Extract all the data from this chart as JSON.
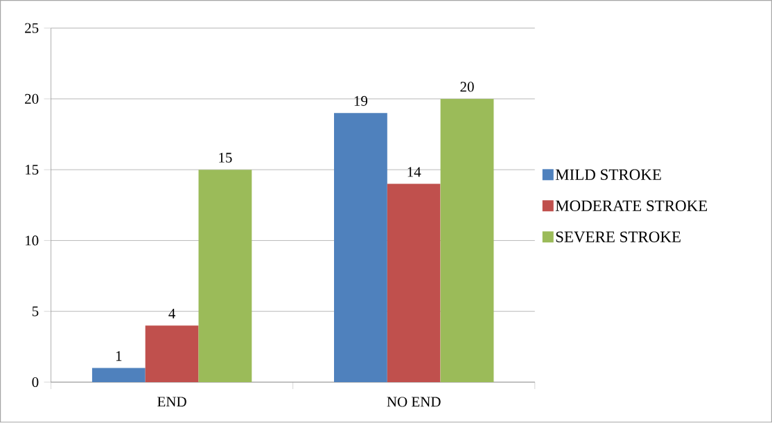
{
  "chart_data": {
    "type": "bar",
    "categories": [
      "END",
      "NO END"
    ],
    "series": [
      {
        "name": "MILD STROKE",
        "color": "#4f81bd",
        "values": [
          1,
          19
        ]
      },
      {
        "name": "MODERATE STROKE",
        "color": "#c0504d",
        "values": [
          4,
          14
        ]
      },
      {
        "name": "SEVERE STROKE",
        "color": "#9bbb59",
        "values": [
          15,
          20
        ]
      }
    ],
    "ylim": [
      0,
      25
    ],
    "yticks": [
      0,
      5,
      10,
      15,
      20,
      25
    ],
    "grid": "y",
    "legend": "right",
    "data_labels": true
  }
}
